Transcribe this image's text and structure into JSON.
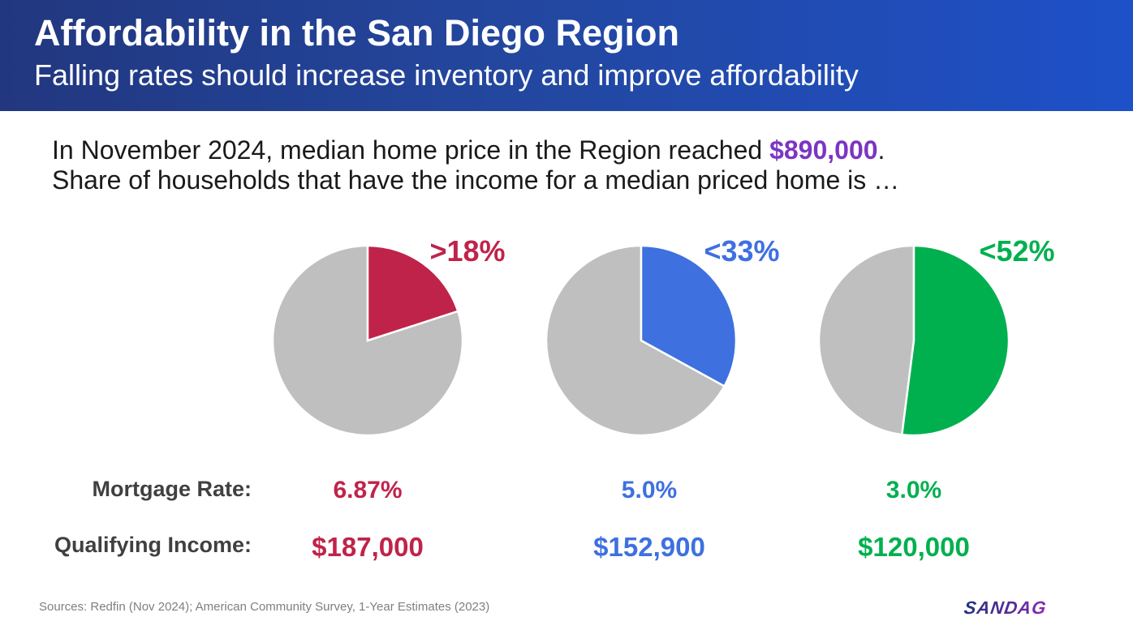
{
  "header": {
    "title": "Affordability in the San Diego Region",
    "subtitle": "Falling rates should increase inventory and improve affordability"
  },
  "intro": {
    "line1_prefix": "In November 2024, median home price in the Region reached ",
    "line1_price": "$890,000",
    "line1_suffix": ".",
    "line2": "Share of households that have the income for a median priced home is …"
  },
  "row_labels": {
    "rate": "Mortgage Rate:",
    "income": "Qualifying Income:"
  },
  "colors": {
    "remainder": "#bfbfbf",
    "price_highlight": "#7b35c4"
  },
  "chart_data": [
    {
      "type": "pie",
      "label": ">18%",
      "share_percent": 20,
      "color": "#c0234a",
      "mortgage_rate": "6.87%",
      "qualifying_income": "$187,000"
    },
    {
      "type": "pie",
      "label": "<33%",
      "share_percent": 33,
      "color": "#3e70e0",
      "mortgage_rate": "5.0%",
      "qualifying_income": "$152,900"
    },
    {
      "type": "pie",
      "label": "<52%",
      "share_percent": 52,
      "color": "#00b04f",
      "mortgage_rate": "3.0%",
      "qualifying_income": "$120,000"
    }
  ],
  "footer": {
    "sources": "Sources: Redfin (Nov 2024); American Community Survey, 1-Year Estimates (2023)",
    "logo_text": "SANDAG"
  }
}
